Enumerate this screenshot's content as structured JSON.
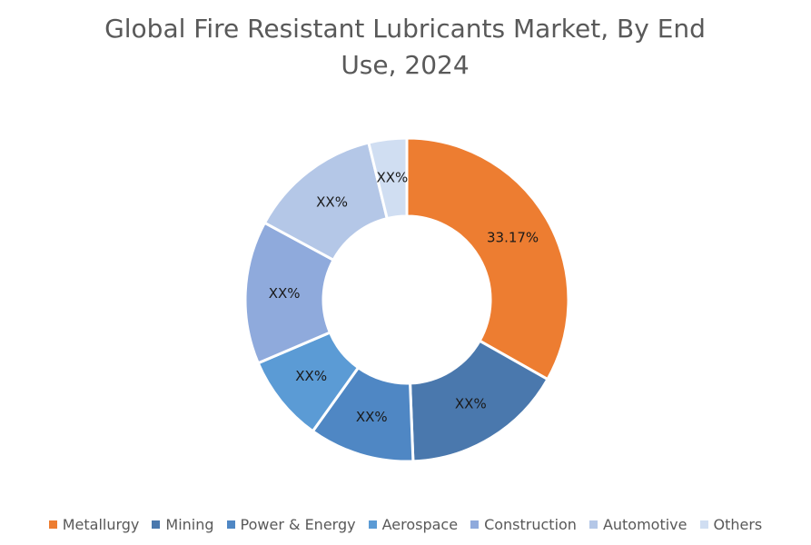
{
  "chart_data": {
    "type": "donut",
    "title": "Global Fire Resistant Lubricants Market, By End Use, 2024",
    "categories": [
      "Metallurgy",
      "Mining",
      "Power & Energy",
      "Aerospace",
      "Construction",
      "Automotive",
      "Others"
    ],
    "values": [
      33.17,
      16.2,
      10.5,
      8.7,
      14.3,
      13.3,
      3.8
    ],
    "value_labels": [
      "33.17%",
      "XX%",
      "XX%",
      "XX%",
      "XX%",
      "XX%",
      "XX%"
    ],
    "colors": [
      "#ed7d31",
      "#4a78ad",
      "#4f87c4",
      "#5b9bd5",
      "#8faadc",
      "#b4c7e7",
      "#d0def2"
    ],
    "legend": "bottom"
  }
}
